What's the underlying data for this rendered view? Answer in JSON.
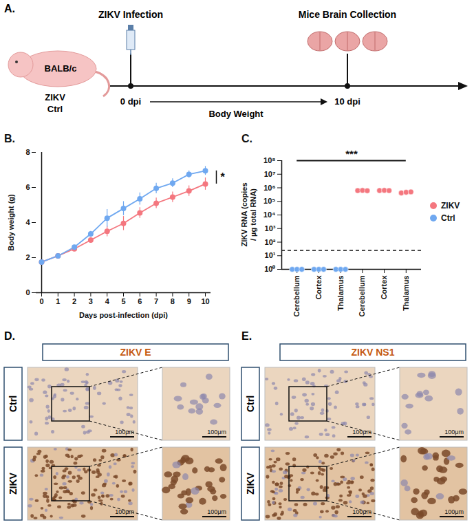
{
  "figure": {
    "panel_A": {
      "letter": "A.",
      "strain": "BALB/c",
      "groups": [
        "ZIKV",
        "Ctrl"
      ],
      "infection": "ZIKV Infection",
      "collection": "Mice Brain Collection",
      "start": "0 dpi",
      "end": "10 dpi",
      "interval": "Body Weight"
    },
    "panel_D": {
      "letter": "D.",
      "title": "ZIKV E",
      "rows": [
        "Ctrl",
        "ZIKV"
      ],
      "scale_bar": "100μm"
    },
    "panel_E": {
      "letter": "E.",
      "title": "ZIKV NS1",
      "rows": [
        "Ctrl",
        "ZIKV"
      ],
      "scale_bar": "100μm"
    }
  },
  "chart_data": [
    {
      "panel": "B.",
      "type": "line",
      "x_label": "Days post-infection (dpi)",
      "y_label": "Body weight (g)",
      "x": [
        0,
        1,
        2,
        3,
        4,
        5,
        6,
        7,
        8,
        9,
        10
      ],
      "xlim": [
        0,
        10
      ],
      "xticks": [
        0,
        1,
        2,
        3,
        4,
        5,
        6,
        7,
        8,
        9,
        10
      ],
      "ylim": [
        0,
        8
      ],
      "yticks": [
        0,
        2,
        4,
        6,
        8
      ],
      "marker": "circle",
      "series": [
        {
          "name": "ZIKV",
          "color": "#f4777f",
          "values": [
            1.75,
            2.1,
            2.5,
            3.0,
            3.5,
            3.95,
            4.55,
            5.1,
            5.45,
            5.8,
            6.2
          ],
          "errors": [
            0.05,
            0.05,
            0.15,
            0.15,
            0.3,
            0.4,
            0.3,
            0.3,
            0.3,
            0.3,
            0.35
          ]
        },
        {
          "name": "Ctrl",
          "color": "#6fa8f0",
          "values": [
            1.75,
            2.1,
            2.6,
            3.35,
            4.25,
            4.8,
            5.35,
            5.95,
            6.25,
            6.75,
            6.95
          ],
          "errors": [
            0.05,
            0.05,
            0.1,
            0.15,
            0.5,
            0.4,
            0.35,
            0.3,
            0.25,
            0.2,
            0.25
          ]
        }
      ],
      "annotations": [
        "*"
      ]
    },
    {
      "panel": "C.",
      "type": "scatter",
      "y_label": "ZIKV RNA (copies / µg total RNA)",
      "categories": [
        "Cerebellum",
        "Cortex",
        "Thalamus",
        "Cerebellum",
        "Cortex",
        "Thalamus"
      ],
      "log": "y",
      "ylim": [
        1,
        100000000
      ],
      "yticks": [
        {
          "value": 1,
          "label": "10⁰"
        },
        {
          "value": 10,
          "label": "10¹"
        },
        {
          "value": 100,
          "label": "10²"
        },
        {
          "value": 1000,
          "label": "10³"
        },
        {
          "value": 10000,
          "label": "10⁴"
        },
        {
          "value": 100000,
          "label": "10⁵"
        },
        {
          "value": 1000000,
          "label": "10⁶"
        },
        {
          "value": 10000000,
          "label": "10⁷"
        },
        {
          "value": 100000000,
          "label": "10⁸"
        }
      ],
      "reference_line": 25,
      "legend": "right",
      "series": [
        {
          "name": "ZIKV",
          "color": "#f4777f",
          "values": [
            null,
            null,
            null,
            [
              620000,
              640000,
              610000
            ],
            [
              630000,
              650000,
              620000
            ],
            [
              420000,
              470000,
              500000
            ]
          ]
        },
        {
          "name": "Ctrl",
          "color": "#6fa8f0",
          "values": [
            [
              1,
              1,
              1
            ],
            [
              1,
              1,
              1
            ],
            [
              1,
              1,
              1
            ],
            null,
            null,
            null
          ]
        }
      ],
      "annotations": [
        "***"
      ]
    }
  ]
}
